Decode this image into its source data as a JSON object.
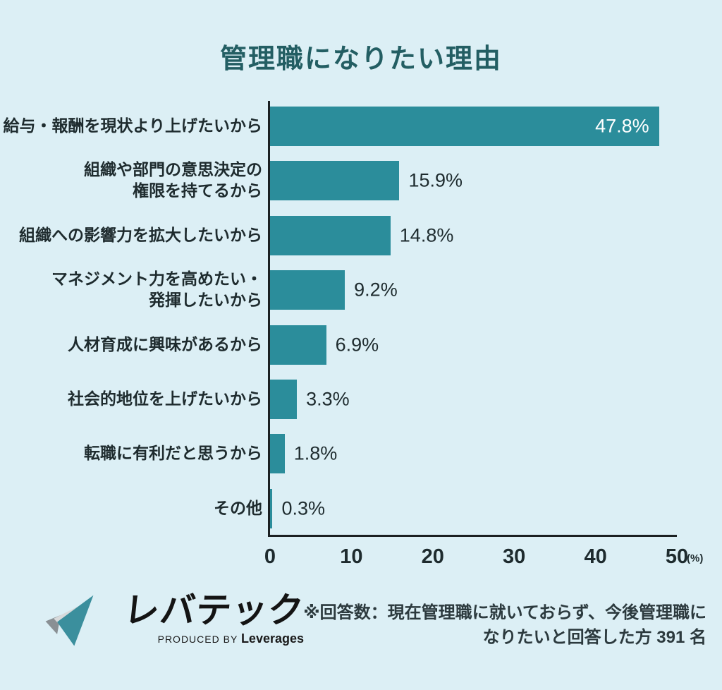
{
  "title": "管理職になりたい理由",
  "chart_data": {
    "type": "bar",
    "orientation": "horizontal",
    "title": "管理職になりたい理由",
    "categories": [
      "給与・報酬を現状より上げたいから",
      "組織や部門の意思決定の\n権限を持てるから",
      "組織への影響力を拡大したいから",
      "マネジメント力を高めたい・\n発揮したいから",
      "人材育成に興味があるから",
      "社会的地位を上げたいから",
      "転職に有利だと思うから",
      "その他"
    ],
    "values": [
      47.8,
      15.9,
      14.8,
      9.2,
      6.9,
      3.3,
      1.8,
      0.3
    ],
    "value_labels": [
      "47.8%",
      "15.9%",
      "14.8%",
      "9.2%",
      "6.9%",
      "3.3%",
      "1.8%",
      "0.3%"
    ],
    "xlim": [
      0,
      50
    ],
    "x_ticks": [
      0,
      10,
      20,
      30,
      40,
      50
    ],
    "x_unit": "(%)",
    "grid": false,
    "legend": false,
    "bar_color": "#2B8D9B"
  },
  "footer": {
    "logo_name": "レバテック",
    "logo_sub_prefix": "PRODUCED BY ",
    "logo_sub_brand": "Leverages",
    "note": "※回答数：現在管理職に就いておらず、今後管理職に\nなりたいと回答した方 391 名"
  },
  "colors": {
    "background": "#DCEFF5",
    "bar": "#2B8D9B",
    "title": "#235E63",
    "text": "#1E2B2E",
    "axis": "#1B2022",
    "value_in_bar": "#FFFFFF",
    "logo_teal": "#3B8F9D",
    "logo_gray_light": "#D8DADB",
    "logo_gray_dark": "#8A9094"
  }
}
